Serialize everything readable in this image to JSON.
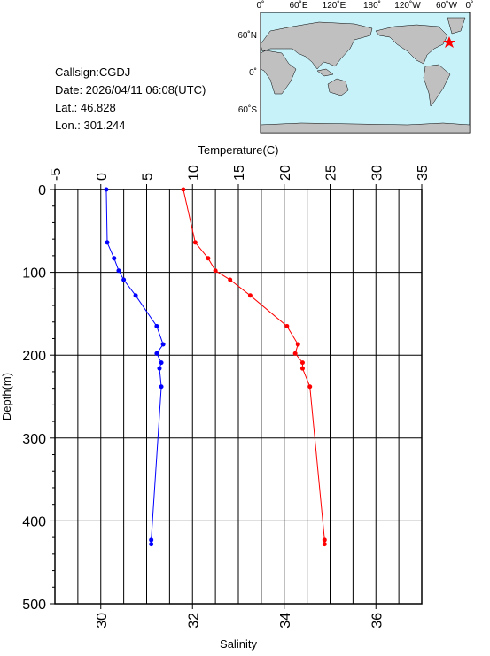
{
  "info": {
    "callsign": "Callsign:CGDJ",
    "date": "Date:  2026/04/11 06:08(UTC)",
    "lat": "Lat.:  46.828",
    "lon": "Lon.:  301.244"
  },
  "map": {
    "lon_labels": [
      "0˚",
      "60˚E",
      "120˚E",
      "180˚",
      "120˚W",
      "60˚W",
      "0˚"
    ],
    "lat_labels": [
      "60˚N",
      "0˚",
      "60˚S"
    ]
  },
  "chart_data": {
    "type": "line",
    "x_label": "Salinity",
    "x2_label": "Temperature(C)",
    "y_label": "Depth(m)",
    "depth": [
      0,
      64,
      83,
      98,
      109,
      128,
      165,
      187,
      198,
      209,
      216,
      238,
      423,
      428
    ],
    "series": [
      {
        "name": "Temperature",
        "color": "#ff0000",
        "axis": "x2",
        "values": [
          9.0,
          10.3,
          11.7,
          12.5,
          14.1,
          16.3,
          20.3,
          21.5,
          21.2,
          22.0,
          22.0,
          22.8,
          24.4,
          24.4
        ]
      },
      {
        "name": "Salinity",
        "color": "#0000ff",
        "axis": "x",
        "values": [
          30.12,
          30.14,
          30.29,
          30.39,
          30.5,
          30.76,
          31.22,
          31.36,
          31.22,
          31.32,
          31.28,
          31.32,
          31.1,
          31.1
        ]
      }
    ],
    "xlim": [
      29,
      37
    ],
    "xticks": [
      30,
      32,
      34,
      36
    ],
    "x2lim": [
      -5,
      35
    ],
    "x2ticks": [
      -5,
      0,
      5,
      10,
      15,
      20,
      25,
      30,
      35
    ],
    "ylim": [
      0,
      500
    ],
    "yticks": [
      0,
      100,
      200,
      300,
      400,
      500
    ],
    "grid": true
  }
}
